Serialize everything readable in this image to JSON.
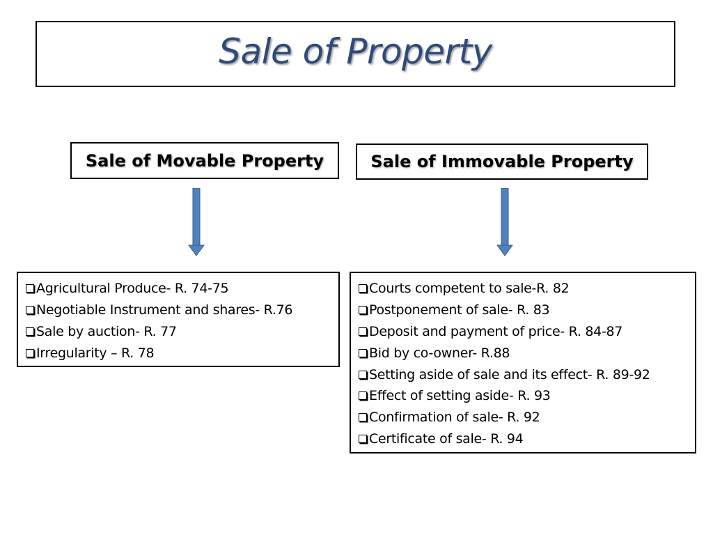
{
  "title": "Sale of Property",
  "colors": {
    "title": "#2e4a7d",
    "arrow": "#4f81bd",
    "arrow_edge": "#385d8a"
  },
  "left": {
    "heading": "Sale of Movable Property",
    "items": [
      "Agricultural Produce- R. 74-75",
      "Negotiable Instrument and shares- R.76",
      "Sale by auction- R. 77",
      "Irregularity – R. 78"
    ]
  },
  "right": {
    "heading": "Sale of Immovable Property",
    "items": [
      "Courts competent to sale-R. 82",
      "Postponement of sale- R. 83",
      "Deposit and payment of price- R. 84-87",
      "Bid by co-owner- R.88",
      "Setting aside of sale and its effect- R. 89-92",
      "Effect of setting aside- R. 93",
      "Confirmation of sale- R. 92",
      "Certificate of sale- R. 94"
    ]
  }
}
